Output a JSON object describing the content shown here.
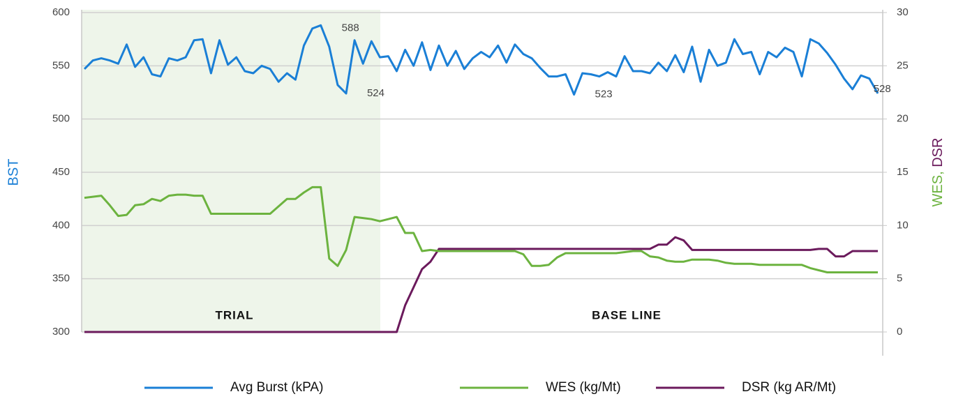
{
  "chart_data": {
    "type": "line",
    "ylabel": "BST",
    "y2label": [
      "WES,",
      "DSR"
    ],
    "regions": [
      "TRIAL",
      "BASE LINE"
    ],
    "categories": [
      null,
      null,
      null,
      null,
      null,
      null,
      null,
      null,
      null,
      null,
      null,
      null,
      null,
      null,
      null,
      null,
      null,
      null,
      null,
      null,
      null,
      null,
      null,
      null,
      null,
      null,
      null,
      null,
      null,
      null,
      null,
      null,
      null,
      null,
      null,
      null,
      null,
      null,
      null,
      null,
      null,
      null,
      null,
      null,
      null,
      null,
      null,
      null,
      null,
      null,
      null,
      null,
      null,
      null,
      null,
      null,
      null,
      null,
      null,
      null,
      null,
      null,
      null,
      null,
      null,
      null,
      null,
      null,
      null,
      null,
      null,
      null,
      null,
      null,
      null,
      null,
      null,
      null,
      null,
      null,
      null,
      null,
      null,
      null,
      null,
      null,
      null,
      null,
      null,
      null,
      null,
      null,
      null,
      null,
      null
    ],
    "ylim": [
      300,
      600
    ],
    "yticks": [
      300,
      350,
      400,
      450,
      500,
      550,
      600
    ],
    "y2lim": [
      0,
      30
    ],
    "y2ticks": [
      0,
      5,
      10,
      15,
      20,
      25,
      30
    ],
    "grid": true,
    "series": [
      {
        "name": "Avg Burst (kPA)",
        "color": "#1a7fd6",
        "values": [
          547,
          555,
          557,
          555,
          552,
          570,
          549,
          558,
          542,
          540,
          557,
          555,
          558,
          574,
          575,
          543,
          574,
          551,
          558,
          545,
          543,
          550,
          547,
          535,
          543,
          537,
          569,
          585,
          588,
          568,
          532,
          524,
          574,
          552,
          573,
          558,
          559,
          545,
          565,
          550,
          572,
          546,
          569,
          550,
          564,
          547,
          557,
          563,
          558,
          569,
          553,
          570,
          561,
          557,
          548,
          540,
          540,
          542,
          523,
          543,
          542,
          540,
          544,
          540,
          559,
          545,
          545,
          543,
          553,
          545,
          560,
          544,
          568,
          535,
          565,
          550,
          553,
          575,
          561,
          563,
          542,
          563,
          558,
          567,
          563,
          540,
          575,
          571,
          562,
          551,
          538,
          528,
          541,
          538,
          524
        ],
        "value_labels": [
          null,
          null,
          null,
          null,
          null,
          null,
          null,
          null,
          null,
          null,
          null,
          null,
          null,
          null,
          null,
          null,
          null,
          null,
          null,
          null,
          null,
          null,
          null,
          null,
          null,
          null,
          null,
          null,
          "588",
          null,
          null,
          "524",
          null,
          null,
          null,
          null,
          null,
          null,
          null,
          null,
          null,
          null,
          null,
          null,
          null,
          null,
          null,
          null,
          null,
          null,
          null,
          null,
          null,
          null,
          null,
          null,
          null,
          null,
          "523",
          null,
          null,
          null,
          null,
          null,
          null,
          null,
          null,
          null,
          null,
          null,
          null,
          null,
          null,
          null,
          null,
          null,
          null,
          null,
          null,
          null,
          null,
          null,
          null,
          null,
          null,
          null,
          null,
          null,
          null,
          null,
          null,
          "528",
          null,
          null,
          null
        ]
      },
      {
        "name": "WES (kg/Mt)",
        "color": "#6cb33f",
        "axis": "y2",
        "values": [
          12.6,
          12.7,
          12.8,
          11.9,
          10.9,
          11.0,
          11.9,
          12.0,
          12.5,
          12.3,
          12.8,
          12.9,
          12.9,
          12.8,
          12.8,
          11.1,
          11.1,
          11.1,
          11.1,
          11.1,
          11.1,
          11.1,
          11.1,
          11.8,
          12.5,
          12.5,
          13.1,
          13.6,
          13.6,
          6.9,
          6.2,
          7.7,
          10.8,
          10.7,
          10.6,
          10.4,
          10.6,
          10.8,
          9.3,
          9.3,
          7.6,
          7.7,
          7.6,
          7.6,
          7.6,
          7.6,
          7.6,
          7.6,
          7.6,
          7.6,
          7.6,
          7.6,
          7.3,
          6.2,
          6.2,
          6.3,
          7.0,
          7.4,
          7.4,
          7.4,
          7.4,
          7.4,
          7.4,
          7.4,
          7.5,
          7.6,
          7.6,
          7.1,
          7.0,
          6.7,
          6.6,
          6.6,
          6.8,
          6.8,
          6.8,
          6.7,
          6.5,
          6.4,
          6.4,
          6.4,
          6.3,
          6.3,
          6.3,
          6.3,
          6.3,
          6.3,
          6.0,
          5.8,
          5.6,
          5.6,
          5.6,
          5.6,
          5.6,
          5.6,
          5.6
        ]
      },
      {
        "name": "DSR (kg AR/Mt)",
        "color": "#6b1a5c",
        "axis": "y2",
        "values": [
          0,
          0,
          0,
          0,
          0,
          0,
          0,
          0,
          0,
          0,
          0,
          0,
          0,
          0,
          0,
          0,
          0,
          0,
          0,
          0,
          0,
          0,
          0,
          0,
          0,
          0,
          0,
          0,
          0,
          0,
          0,
          0,
          0,
          0,
          0,
          0,
          0,
          0,
          2.5,
          4.2,
          5.9,
          6.6,
          7.8,
          7.8,
          7.8,
          7.8,
          7.8,
          7.8,
          7.8,
          7.8,
          7.8,
          7.8,
          7.8,
          7.8,
          7.8,
          7.8,
          7.8,
          7.8,
          7.8,
          7.8,
          7.8,
          7.8,
          7.8,
          7.8,
          7.8,
          7.8,
          7.8,
          7.8,
          8.2,
          8.2,
          8.9,
          8.6,
          7.7,
          7.7,
          7.7,
          7.7,
          7.7,
          7.7,
          7.7,
          7.7,
          7.7,
          7.7,
          7.7,
          7.7,
          7.7,
          7.7,
          7.7,
          7.8,
          7.8,
          7.1,
          7.1,
          7.6,
          7.6,
          7.6,
          7.6
        ]
      }
    ]
  }
}
